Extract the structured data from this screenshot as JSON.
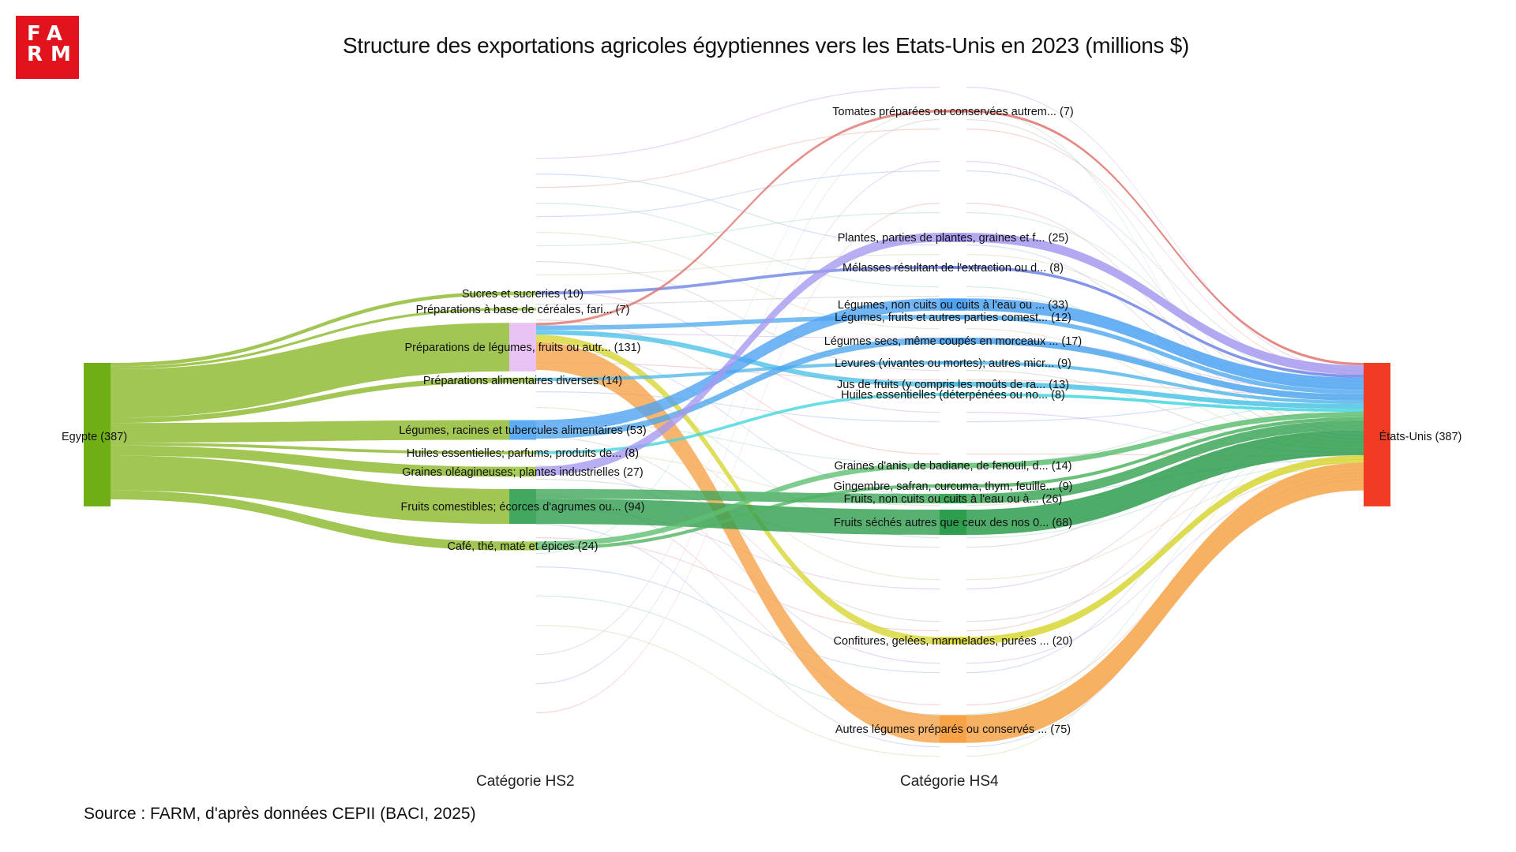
{
  "header": {
    "logo_text": "FARM",
    "title": "Structure des exportations agricoles égyptiennes vers les Etats-Unis en 2023 (millions $)"
  },
  "axes": {
    "hs2_label": "Catégorie HS2",
    "hs4_label": "Catégorie HS4"
  },
  "footer": {
    "source": "Source : FARM, d'après données CEPII (BACI, 2025)"
  },
  "chart_data": {
    "type": "sankey",
    "title": "Structure des exportations agricoles égyptiennes vers les Etats-Unis en 2023 (millions $)",
    "unit": "millions $",
    "source_node": {
      "label": "Egypte (387)",
      "value": 387,
      "color": "#6fae14"
    },
    "target_node": {
      "label": "États-Unis (387)",
      "value": 387,
      "color": "#f03c22"
    },
    "hs2_nodes": [
      {
        "id": "sucres",
        "label": "Sucres et sucreries (10)",
        "value": 10
      },
      {
        "id": "cereales",
        "label": "Préparations à base de céréales, fari... (7)",
        "value": 7
      },
      {
        "id": "prep_leg",
        "label": "Préparations de légumes, fruits ou autr... (131)",
        "value": 131
      },
      {
        "id": "prep_div",
        "label": "Préparations alimentaires diverses (14)",
        "value": 14
      },
      {
        "id": "legumes",
        "label": "Légumes, racines et tubercules alimentaires (53)",
        "value": 53
      },
      {
        "id": "huiles",
        "label": "Huiles essentielles; parfums, produits de... (8)",
        "value": 8
      },
      {
        "id": "graines_ol",
        "label": "Graines oléagineuses; plantes industrielles (27)",
        "value": 27
      },
      {
        "id": "fruits",
        "label": "Fruits comestibles; écorces d'agrumes ou... (94)",
        "value": 94
      },
      {
        "id": "cafe",
        "label": "Café, thé, maté et épices (24)",
        "value": 24
      }
    ],
    "hs4_nodes": [
      {
        "id": "tomates",
        "label": "Tomates préparées ou conservées autrem... (7)",
        "value": 7,
        "color": "#e0746f"
      },
      {
        "id": "plantes",
        "label": "Plantes, parties de plantes, graines et f... (25)",
        "value": 25,
        "color": "#a59af0"
      },
      {
        "id": "melasses",
        "label": "Mélasses résultant de l'extraction ou d... (8)",
        "value": 8,
        "color": "#6f84e6"
      },
      {
        "id": "leg_non_cuits",
        "label": "Légumes, non cuits ou cuits à l'eau ou ... (33)",
        "value": 33,
        "color": "#4da3f2"
      },
      {
        "id": "leg_fruits_parties",
        "label": "Légumes, fruits et autres parties comest... (12)",
        "value": 12,
        "color": "#58aef0"
      },
      {
        "id": "leg_secs",
        "label": "Légumes secs, même coupés en morceaux ... (17)",
        "value": 17,
        "color": "#4fa6ee"
      },
      {
        "id": "levures",
        "label": "Levures (vivantes ou mortes); autres micr... (9)",
        "value": 9,
        "color": "#56b9ea"
      },
      {
        "id": "jus",
        "label": "Jus de fruits (y compris les moûts de ra... (13)",
        "value": 13,
        "color": "#4ec3e8"
      },
      {
        "id": "huiles_ess",
        "label": "Huiles essentielles (déterpénées ou no... (8)",
        "value": 8,
        "color": "#45d6de"
      },
      {
        "id": "anis",
        "label": "Graines d'anis, de badiane, de fenouil, d... (14)",
        "value": 14,
        "color": "#5fbf73"
      },
      {
        "id": "gingembre",
        "label": "Gingembre, safran, curcuma, thym, feuille... (9)",
        "value": 9,
        "color": "#4fb560"
      },
      {
        "id": "fruits_non_cuits",
        "label": "Fruits, non cuits ou cuits à l'eau ou à... (26)",
        "value": 26,
        "color": "#3fa85a"
      },
      {
        "id": "fruits_seches",
        "label": "Fruits séchés autres que ceux des nos 0... (68)",
        "value": 68,
        "color": "#2e9e4e"
      },
      {
        "id": "confitures",
        "label": "Confitures, gelées, marmelades, purées ... (20)",
        "value": 20,
        "color": "#d7d634"
      },
      {
        "id": "autres_leg",
        "label": "Autres légumes préparés ou conservés ... (75)",
        "value": 75,
        "color": "#f6a348"
      }
    ],
    "links_hs2_to_hs4": [
      {
        "source": "sucres",
        "target": "melasses",
        "value": 8
      },
      {
        "source": "prep_leg",
        "target": "tomates",
        "value": 7
      },
      {
        "source": "prep_leg",
        "target": "leg_fruits_parties",
        "value": 12
      },
      {
        "source": "prep_leg",
        "target": "jus",
        "value": 13
      },
      {
        "source": "prep_leg",
        "target": "confitures",
        "value": 20
      },
      {
        "source": "prep_leg",
        "target": "autres_leg",
        "value": 75
      },
      {
        "source": "prep_div",
        "target": "levures",
        "value": 9
      },
      {
        "source": "legumes",
        "target": "leg_non_cuits",
        "value": 33
      },
      {
        "source": "legumes",
        "target": "leg_secs",
        "value": 17
      },
      {
        "source": "huiles",
        "target": "huiles_ess",
        "value": 8
      },
      {
        "source": "graines_ol",
        "target": "plantes",
        "value": 25
      },
      {
        "source": "fruits",
        "target": "fruits_non_cuits",
        "value": 26
      },
      {
        "source": "fruits",
        "target": "fruits_seches",
        "value": 68
      },
      {
        "source": "cafe",
        "target": "anis",
        "value": 14
      },
      {
        "source": "cafe",
        "target": "gingembre",
        "value": 9
      }
    ]
  }
}
